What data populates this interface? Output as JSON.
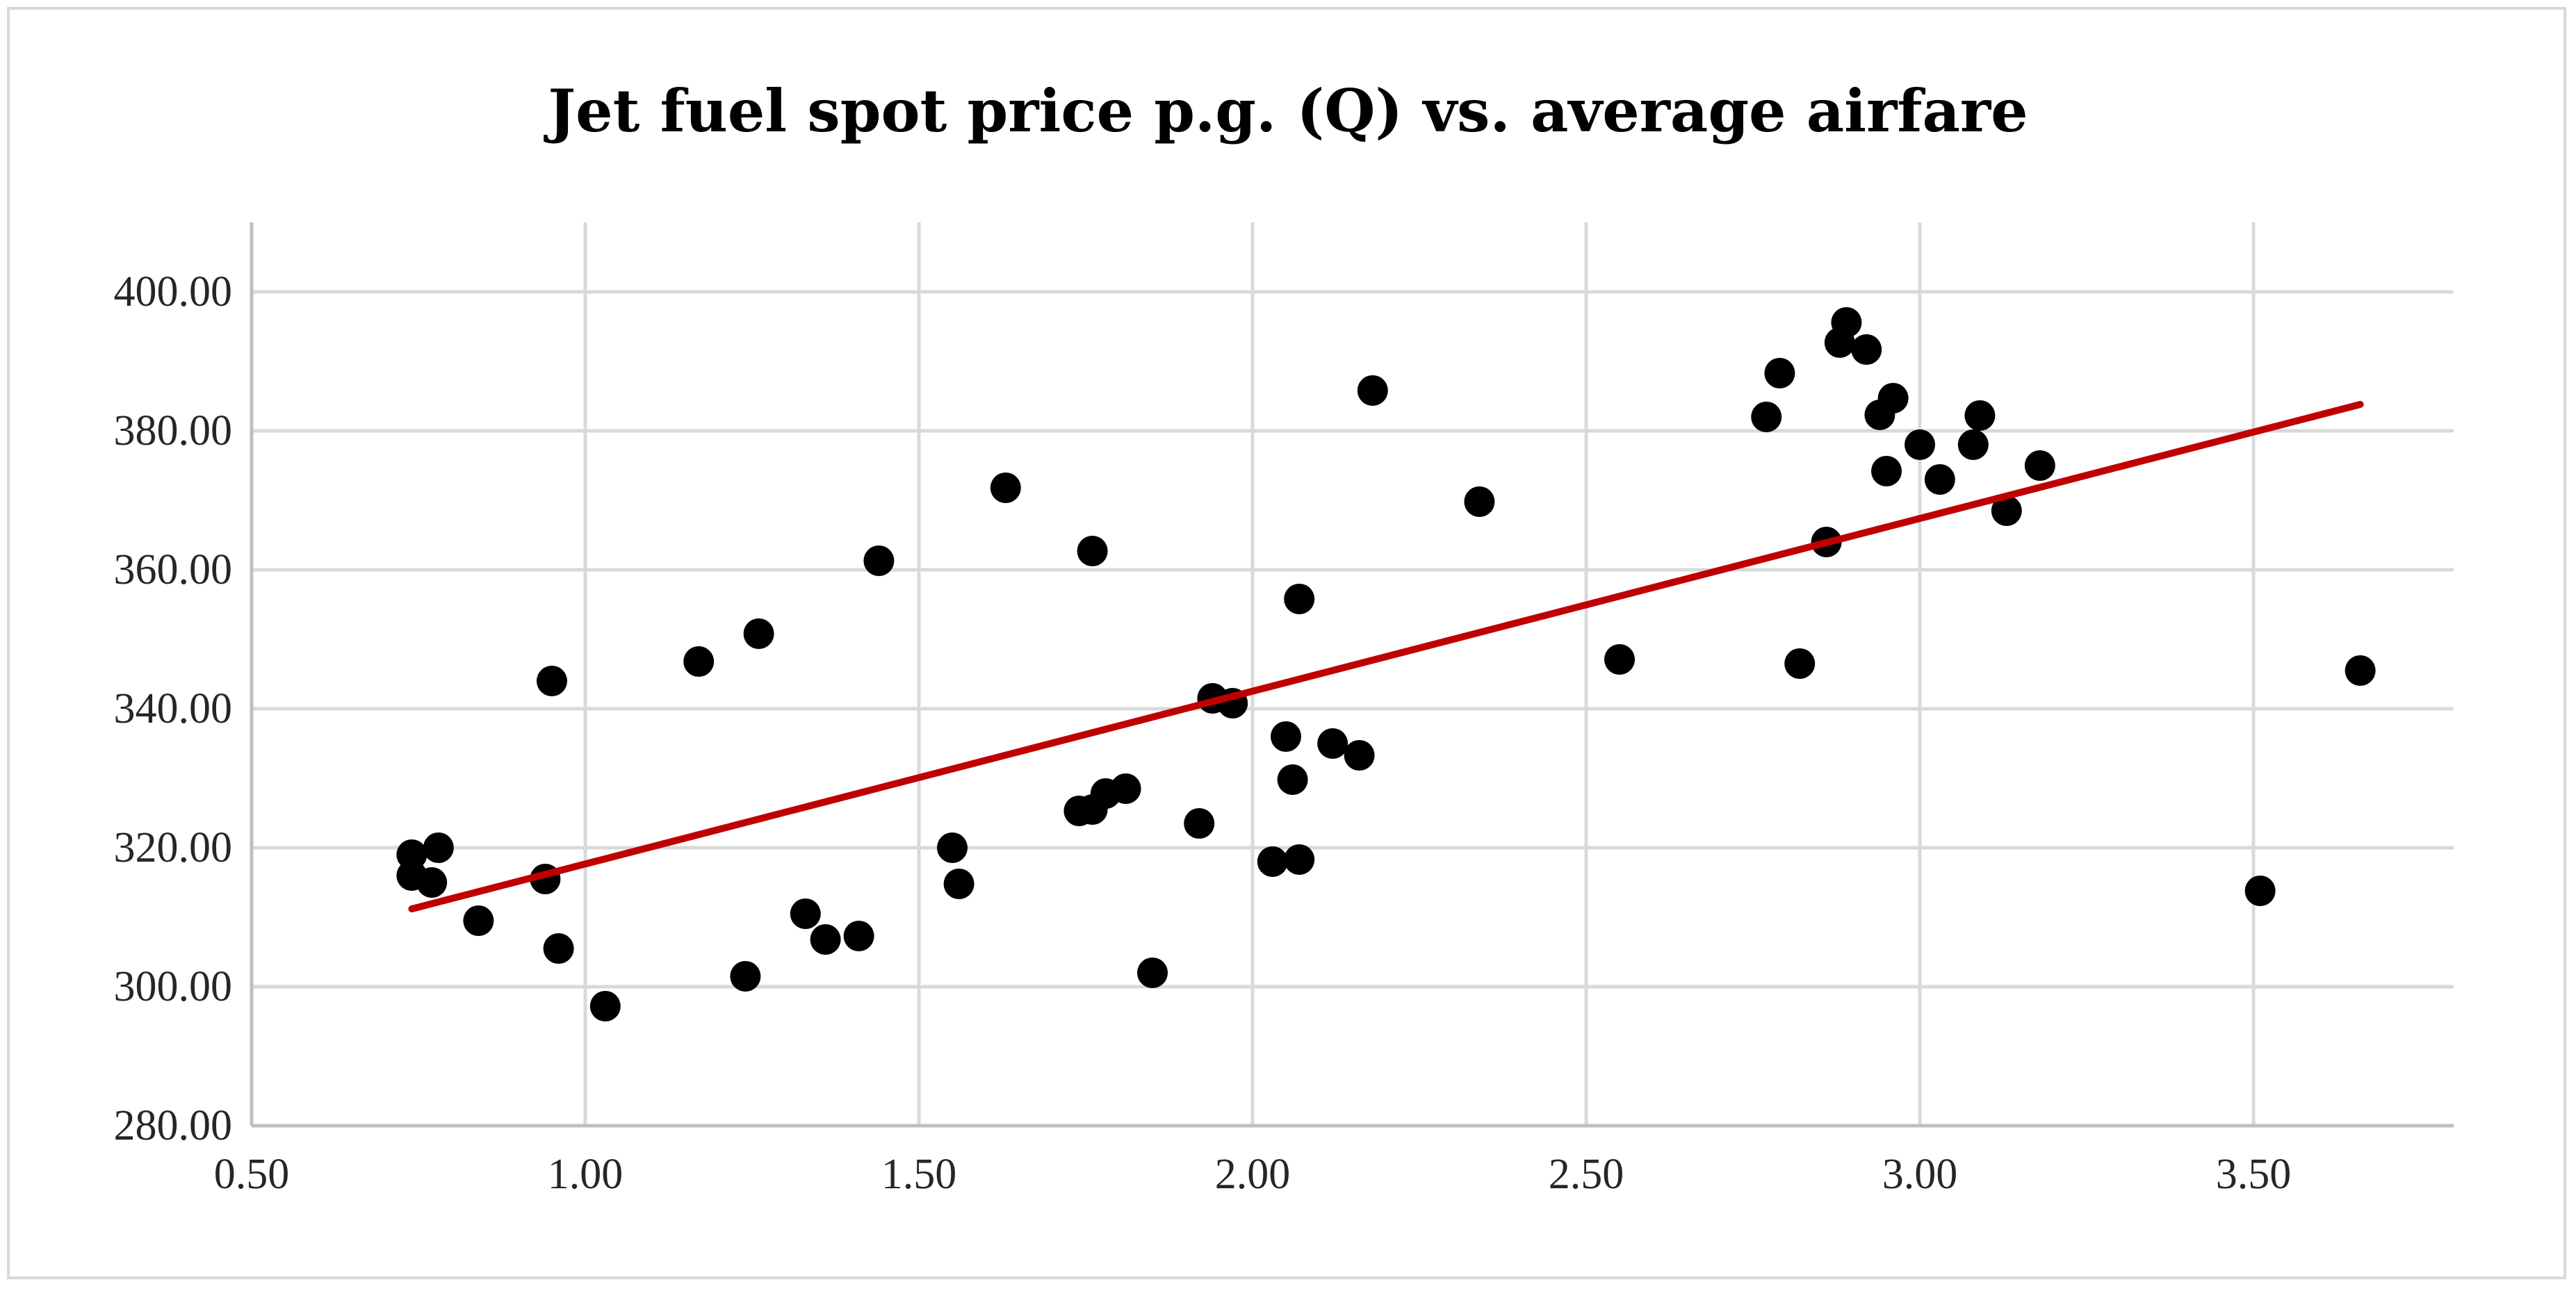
{
  "chart_data": {
    "type": "scatter",
    "title": "Jet fuel spot price p.g. (Q) vs. average airfare",
    "xlabel": "",
    "ylabel": "",
    "xlim": [
      0.5,
      3.8
    ],
    "ylim": [
      280,
      410
    ],
    "x_ticks": [
      0.5,
      1.0,
      1.5,
      2.0,
      2.5,
      3.0,
      3.5
    ],
    "x_tick_labels": [
      "0.50",
      "1.00",
      "1.50",
      "2.00",
      "2.50",
      "3.00",
      "3.50"
    ],
    "y_ticks": [
      280,
      300,
      320,
      340,
      360,
      380,
      400
    ],
    "y_tick_labels": [
      "280.00",
      "300.00",
      "320.00",
      "340.00",
      "360.00",
      "380.00",
      "400.00"
    ],
    "grid": true,
    "legend": "none",
    "marker_color": "#000000",
    "trendline": {
      "type": "linear",
      "x": [
        0.74,
        3.66
      ],
      "y": [
        311.2,
        383.8
      ],
      "color": "#c00000"
    },
    "points": [
      {
        "x": 0.74,
        "y": 316
      },
      {
        "x": 0.74,
        "y": 319
      },
      {
        "x": 0.77,
        "y": 315
      },
      {
        "x": 0.78,
        "y": 320
      },
      {
        "x": 0.84,
        "y": 309.5
      },
      {
        "x": 0.94,
        "y": 315.5
      },
      {
        "x": 0.95,
        "y": 344
      },
      {
        "x": 0.96,
        "y": 305.5
      },
      {
        "x": 1.03,
        "y": 297.2
      },
      {
        "x": 1.17,
        "y": 346.8
      },
      {
        "x": 1.24,
        "y": 301.5
      },
      {
        "x": 1.26,
        "y": 350.8
      },
      {
        "x": 1.33,
        "y": 310.5
      },
      {
        "x": 1.36,
        "y": 306.8
      },
      {
        "x": 1.41,
        "y": 307.3
      },
      {
        "x": 1.44,
        "y": 361.3
      },
      {
        "x": 1.55,
        "y": 320
      },
      {
        "x": 1.56,
        "y": 314.8
      },
      {
        "x": 1.63,
        "y": 371.8
      },
      {
        "x": 1.74,
        "y": 325.3
      },
      {
        "x": 1.76,
        "y": 325.5
      },
      {
        "x": 1.76,
        "y": 362.7
      },
      {
        "x": 1.78,
        "y": 327.8
      },
      {
        "x": 1.81,
        "y": 328.5
      },
      {
        "x": 1.85,
        "y": 302
      },
      {
        "x": 1.92,
        "y": 323.5
      },
      {
        "x": 1.94,
        "y": 341.5
      },
      {
        "x": 1.97,
        "y": 340.8
      },
      {
        "x": 2.03,
        "y": 318
      },
      {
        "x": 2.05,
        "y": 336
      },
      {
        "x": 2.06,
        "y": 329.8
      },
      {
        "x": 2.07,
        "y": 318.3
      },
      {
        "x": 2.07,
        "y": 355.8
      },
      {
        "x": 2.12,
        "y": 335
      },
      {
        "x": 2.16,
        "y": 333.3
      },
      {
        "x": 2.18,
        "y": 385.8
      },
      {
        "x": 2.34,
        "y": 369.8
      },
      {
        "x": 2.55,
        "y": 347.1
      },
      {
        "x": 2.77,
        "y": 382
      },
      {
        "x": 2.79,
        "y": 388.3
      },
      {
        "x": 2.82,
        "y": 346.5
      },
      {
        "x": 2.86,
        "y": 364
      },
      {
        "x": 2.88,
        "y": 392.7
      },
      {
        "x": 2.89,
        "y": 395.6
      },
      {
        "x": 2.92,
        "y": 391.7
      },
      {
        "x": 2.94,
        "y": 382.3
      },
      {
        "x": 2.95,
        "y": 374.2
      },
      {
        "x": 2.96,
        "y": 384.7
      },
      {
        "x": 3.0,
        "y": 378
      },
      {
        "x": 3.03,
        "y": 373
      },
      {
        "x": 3.08,
        "y": 378
      },
      {
        "x": 3.09,
        "y": 382.2
      },
      {
        "x": 3.13,
        "y": 368.5
      },
      {
        "x": 3.18,
        "y": 375
      },
      {
        "x": 3.51,
        "y": 313.8
      },
      {
        "x": 3.66,
        "y": 345.5
      }
    ]
  }
}
